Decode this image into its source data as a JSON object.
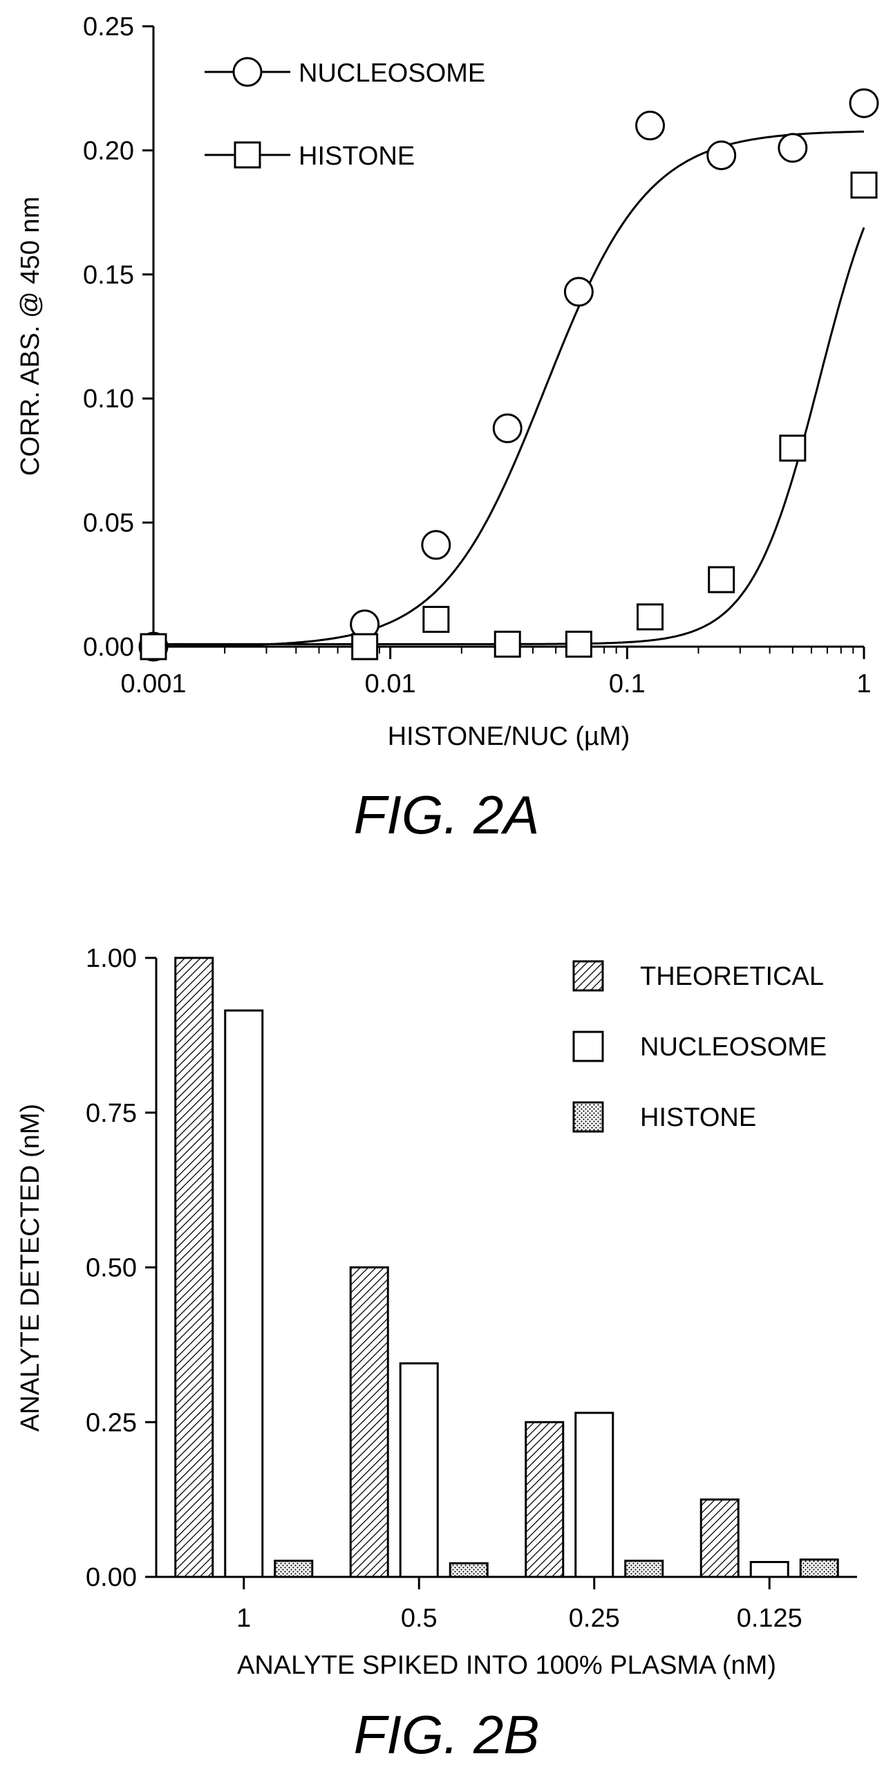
{
  "charts": {
    "a": {
      "caption": "FIG. 2A",
      "chart_data": {
        "type": "scatter",
        "title": "",
        "xlabel": "HISTONE/NUC (µM)",
        "ylabel": "CORR. ABS. @ 450 nm",
        "xscale": "log",
        "xlim": [
          0.001,
          1
        ],
        "ylim": [
          0,
          0.25
        ],
        "xticks": [
          "0.001",
          "0.01",
          "0.1",
          "1"
        ],
        "yticks": [
          "0.00",
          "0.05",
          "0.10",
          "0.15",
          "0.20",
          "0.25"
        ],
        "legend_position": "top-left",
        "series": [
          {
            "name": "NUCLEOSOME",
            "marker": "circle",
            "x": [
              0.001,
              0.0078,
              0.0156,
              0.03125,
              0.0625,
              0.125,
              0.25,
              0.5,
              1
            ],
            "y": [
              0.0,
              0.009,
              0.041,
              0.088,
              0.143,
              0.21,
              0.198,
              0.201,
              0.219
            ],
            "fit": {
              "bottom": 0.0,
              "top": 0.208,
              "ec50": 0.045,
              "hill": 2.0
            }
          },
          {
            "name": "HISTONE",
            "marker": "square",
            "x": [
              0.001,
              0.0078,
              0.0156,
              0.03125,
              0.0625,
              0.125,
              0.25,
              0.5,
              1
            ],
            "y": [
              0.0,
              0.0,
              0.011,
              0.001,
              0.001,
              0.012,
              0.027,
              0.08,
              0.186
            ],
            "fit": {
              "bottom": 0.001,
              "top": 0.215,
              "ec50": 0.65,
              "hill": 3.0
            }
          }
        ]
      }
    },
    "b": {
      "caption": "FIG. 2B",
      "chart_data": {
        "type": "bar",
        "title": "",
        "xlabel": "ANALYTE SPIKED INTO 100% PLASMA (nM)",
        "ylabel": "ANALYTE DETECTED (nM)",
        "ylim": [
          0,
          1.0
        ],
        "yticks": [
          "0.00",
          "0.25",
          "0.50",
          "0.75",
          "1.00"
        ],
        "categories": [
          "1",
          "0.5",
          "0.25",
          "0.125"
        ],
        "legend_position": "top-right",
        "series": [
          {
            "name": "THEORETICAL",
            "pattern": "hatch",
            "values": [
              1.0,
              0.5,
              0.25,
              0.125
            ]
          },
          {
            "name": "NUCLEOSOME",
            "pattern": "white",
            "values": [
              0.915,
              0.345,
              0.265,
              0.024
            ]
          },
          {
            "name": "HISTONE",
            "pattern": "dots",
            "values": [
              0.026,
              0.022,
              0.026,
              0.028
            ]
          }
        ]
      }
    }
  }
}
